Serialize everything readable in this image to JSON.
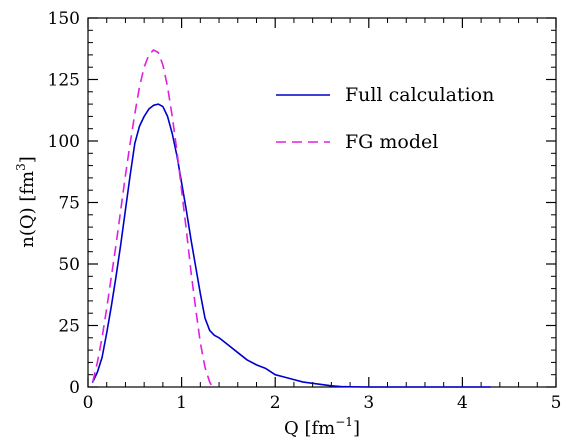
{
  "chart_data": {
    "type": "line",
    "title": "",
    "xlabel": "Q [fm",
    "xlabel_sup": "−1",
    "xlabel_tail": "]",
    "ylabel": "n(Q) [fm",
    "ylabel_sup": "3",
    "ylabel_tail": "]",
    "xlim": [
      0,
      5
    ],
    "ylim": [
      0,
      150
    ],
    "xticks": [
      0,
      1,
      2,
      3,
      4,
      5
    ],
    "yticks": [
      0,
      25,
      50,
      75,
      100,
      125,
      150
    ],
    "x_minor_step": 0.2,
    "y_minor_step": 5,
    "grid": false,
    "legend_position": "top-right",
    "series": [
      {
        "name": "Full calculation",
        "color": "#0000cc",
        "style": "solid",
        "points": [
          [
            0.05,
            2
          ],
          [
            0.1,
            6
          ],
          [
            0.15,
            12
          ],
          [
            0.2,
            22
          ],
          [
            0.25,
            33
          ],
          [
            0.3,
            45
          ],
          [
            0.35,
            58
          ],
          [
            0.4,
            72
          ],
          [
            0.45,
            86
          ],
          [
            0.5,
            99
          ],
          [
            0.55,
            106
          ],
          [
            0.6,
            110
          ],
          [
            0.65,
            113
          ],
          [
            0.7,
            114.5
          ],
          [
            0.75,
            115
          ],
          [
            0.8,
            114
          ],
          [
            0.85,
            110
          ],
          [
            0.9,
            103
          ],
          [
            0.95,
            94
          ],
          [
            1.0,
            83
          ],
          [
            1.05,
            72
          ],
          [
            1.1,
            60
          ],
          [
            1.15,
            49
          ],
          [
            1.2,
            38
          ],
          [
            1.25,
            28
          ],
          [
            1.3,
            23
          ],
          [
            1.35,
            21
          ],
          [
            1.4,
            20
          ],
          [
            1.5,
            17
          ],
          [
            1.6,
            14
          ],
          [
            1.7,
            11
          ],
          [
            1.8,
            9
          ],
          [
            1.9,
            7.5
          ],
          [
            2.0,
            5
          ],
          [
            2.1,
            4
          ],
          [
            2.2,
            3
          ],
          [
            2.3,
            2
          ],
          [
            2.4,
            1.5
          ],
          [
            2.5,
            1
          ],
          [
            2.6,
            0.5
          ],
          [
            2.7,
            0.2
          ],
          [
            2.8,
            0.1
          ],
          [
            3.0,
            0
          ],
          [
            3.5,
            0
          ],
          [
            4.0,
            0
          ],
          [
            4.3,
            0
          ]
        ]
      },
      {
        "name": "FG model",
        "color": "#e020e0",
        "style": "dashed",
        "points": [
          [
            0.05,
            2
          ],
          [
            0.1,
            10
          ],
          [
            0.15,
            20
          ],
          [
            0.2,
            32
          ],
          [
            0.25,
            45
          ],
          [
            0.3,
            58
          ],
          [
            0.35,
            72
          ],
          [
            0.4,
            86
          ],
          [
            0.45,
            99
          ],
          [
            0.5,
            111
          ],
          [
            0.55,
            122
          ],
          [
            0.6,
            130
          ],
          [
            0.65,
            135
          ],
          [
            0.7,
            137
          ],
          [
            0.75,
            136
          ],
          [
            0.8,
            131
          ],
          [
            0.85,
            122
          ],
          [
            0.9,
            110
          ],
          [
            0.95,
            96
          ],
          [
            1.0,
            80
          ],
          [
            1.05,
            64
          ],
          [
            1.1,
            47
          ],
          [
            1.15,
            32
          ],
          [
            1.2,
            18
          ],
          [
            1.25,
            8
          ],
          [
            1.3,
            2
          ],
          [
            1.33,
            0
          ]
        ]
      }
    ]
  }
}
